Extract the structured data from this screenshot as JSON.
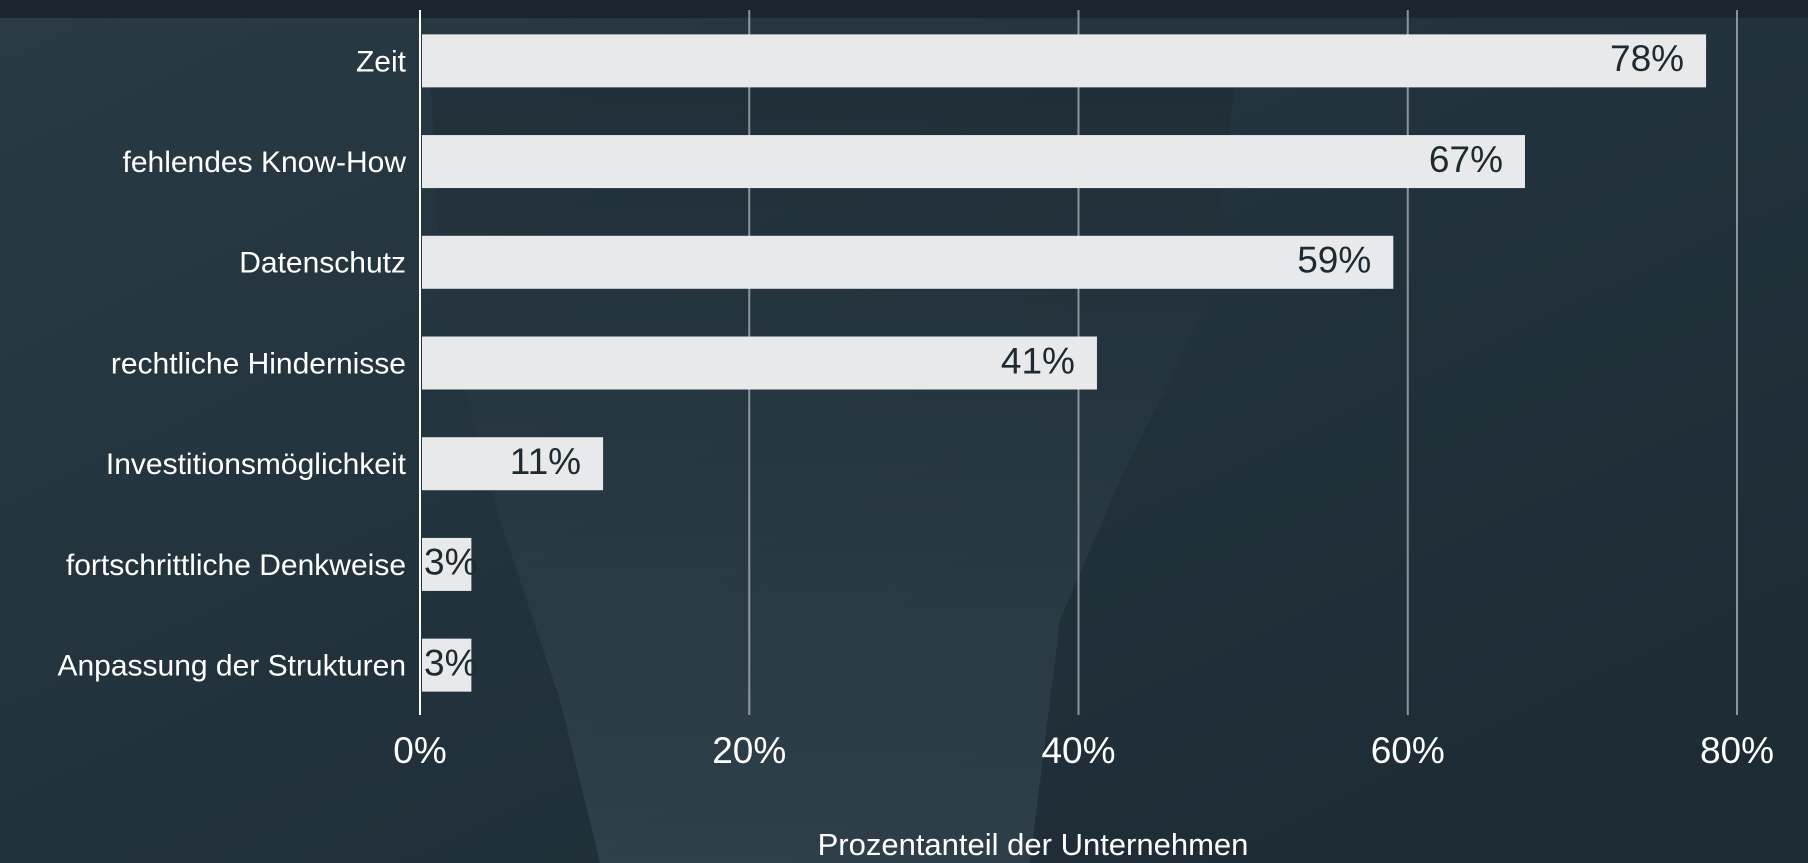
{
  "chart_data": {
    "type": "bar",
    "orientation": "horizontal",
    "xlabel": "Prozentanteil der Unternehmen",
    "categories": [
      "Zeit",
      "fehlendes Know-How",
      "Datenschutz",
      "rechtliche Hindernisse",
      "Investitionsmöglichkeit",
      "fortschrittliche Denkweise",
      "Anpassung der Strukturen"
    ],
    "values": [
      78,
      67,
      59,
      41,
      11,
      3,
      3
    ],
    "value_labels": [
      "78%",
      "67%",
      "59%",
      "41%",
      "11%",
      "3%",
      "3%"
    ],
    "color": "#e8e9ea",
    "xlim": [
      0,
      80
    ],
    "xticks": [
      {
        "value": 0,
        "label": "0%"
      },
      {
        "value": 20,
        "label": "20%"
      },
      {
        "value": 40,
        "label": "40%"
      },
      {
        "value": 60,
        "label": "60%"
      },
      {
        "value": 80,
        "label": "80%"
      }
    ],
    "grid": true
  }
}
